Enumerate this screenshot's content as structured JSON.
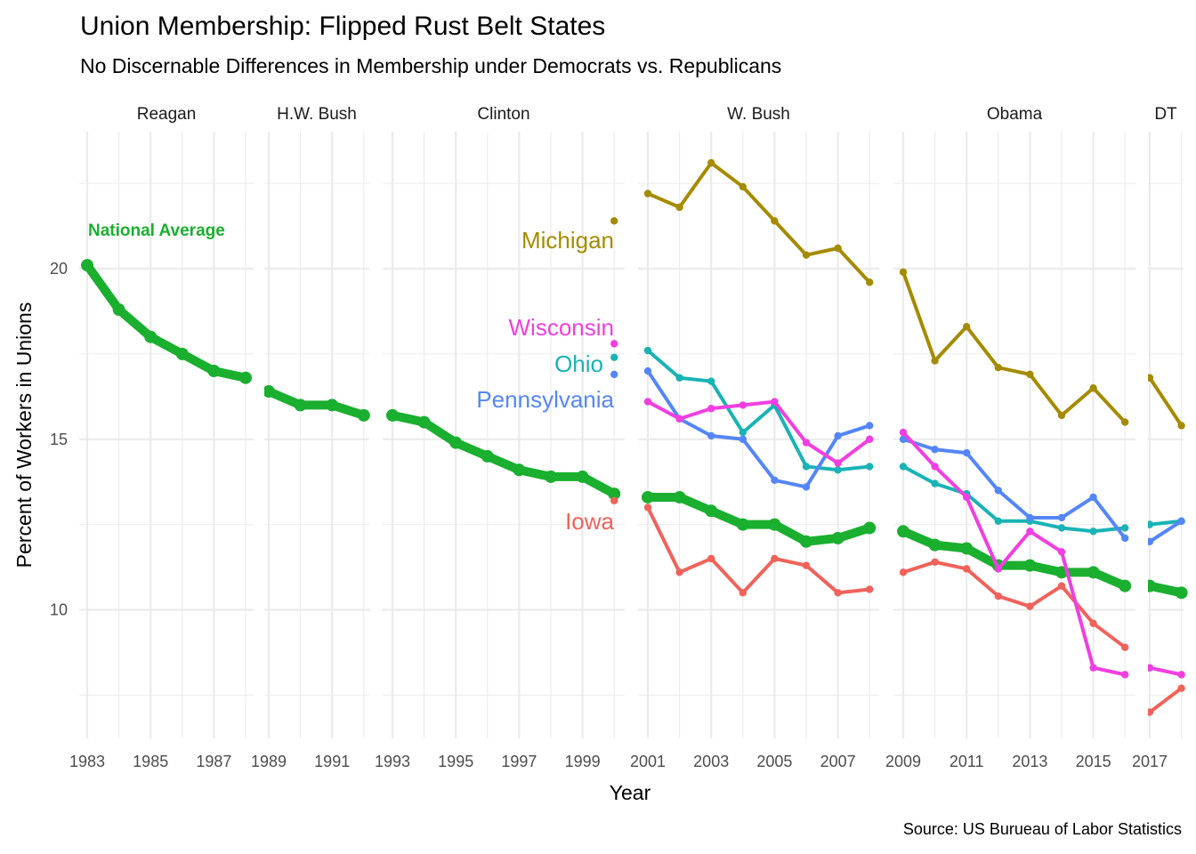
{
  "chart_data": {
    "type": "line",
    "title": "Union Membership: Flipped Rust Belt States",
    "subtitle": "No Discernable Differences in Membership under Democrats vs. Republicans",
    "xlabel": "Year",
    "ylabel": "Percent of Workers in Unions",
    "caption": "Source: US Burueau of Labor Statistics",
    "ylim": [
      6.2,
      24.0
    ],
    "y_ticks": [
      10,
      15,
      20
    ],
    "y_tick_labels": [
      "10",
      "15",
      "20"
    ],
    "y_minor_ticks": [
      7.5,
      12.5,
      17.5,
      22.5
    ],
    "grid": true,
    "legend": "none (direct labels)",
    "facets": [
      {
        "name": "Reagan",
        "years": [
          1983,
          1988
        ],
        "x_ticks": [
          1983,
          1985,
          1987
        ]
      },
      {
        "name": "H.W. Bush",
        "years": [
          1989,
          1992
        ],
        "x_ticks": [
          1989,
          1991
        ]
      },
      {
        "name": "Clinton",
        "years": [
          1993,
          2000
        ],
        "x_ticks": [
          1993,
          1995,
          1997,
          1999
        ]
      },
      {
        "name": "W. Bush",
        "years": [
          2001,
          2008
        ],
        "x_ticks": [
          2001,
          2003,
          2005,
          2007
        ]
      },
      {
        "name": "Obama",
        "years": [
          2009,
          2016
        ],
        "x_ticks": [
          2009,
          2011,
          2013,
          2015
        ]
      },
      {
        "name": "DT",
        "years": [
          2017,
          2018
        ],
        "x_ticks": [
          2017
        ]
      }
    ],
    "series": [
      {
        "name": "National Average",
        "color": "#1aaf2f",
        "label": "National Average",
        "x": [
          1983,
          1984,
          1985,
          1986,
          1987,
          1988,
          1989,
          1990,
          1991,
          1992,
          1993,
          1994,
          1995,
          1996,
          1997,
          1998,
          1999,
          2000,
          2001,
          2002,
          2003,
          2004,
          2005,
          2006,
          2007,
          2008,
          2009,
          2010,
          2011,
          2012,
          2013,
          2014,
          2015,
          2016,
          2017,
          2018
        ],
        "values": [
          20.1,
          18.8,
          18.0,
          17.5,
          17.0,
          16.8,
          16.4,
          16.0,
          16.0,
          15.7,
          15.7,
          15.5,
          14.9,
          14.5,
          14.1,
          13.9,
          13.9,
          13.4,
          13.3,
          13.3,
          12.9,
          12.5,
          12.5,
          12.0,
          12.1,
          12.4,
          12.3,
          11.9,
          11.8,
          11.3,
          11.3,
          11.1,
          11.1,
          10.7,
          10.7,
          10.5
        ]
      },
      {
        "name": "Michigan",
        "color": "#a58b00",
        "label": "Michigan",
        "x": [
          2000,
          2001,
          2002,
          2003,
          2004,
          2005,
          2006,
          2007,
          2008,
          2009,
          2010,
          2011,
          2012,
          2013,
          2014,
          2015,
          2016,
          2017,
          2018
        ],
        "values": [
          21.4,
          22.2,
          21.8,
          23.1,
          22.4,
          21.4,
          20.4,
          20.6,
          19.6,
          19.9,
          17.3,
          18.3,
          17.1,
          16.9,
          15.7,
          16.5,
          15.5,
          16.8,
          15.4
        ]
      },
      {
        "name": "Wisconsin",
        "color": "#f03fe0",
        "label": "Wisconsin",
        "x": [
          2000,
          2001,
          2002,
          2003,
          2004,
          2005,
          2006,
          2007,
          2008,
          2009,
          2010,
          2011,
          2012,
          2013,
          2014,
          2015,
          2016,
          2017,
          2018
        ],
        "values": [
          17.8,
          16.1,
          15.6,
          15.9,
          16.0,
          16.1,
          14.9,
          14.3,
          15.0,
          15.2,
          14.2,
          13.3,
          11.2,
          12.3,
          11.7,
          8.3,
          8.1,
          8.3,
          8.1
        ]
      },
      {
        "name": "Ohio",
        "color": "#19b3b5",
        "label": "Ohio",
        "x": [
          2000,
          2001,
          2002,
          2003,
          2004,
          2005,
          2006,
          2007,
          2008,
          2009,
          2010,
          2011,
          2012,
          2013,
          2014,
          2015,
          2016,
          2017,
          2018
        ],
        "values": [
          17.4,
          17.6,
          16.8,
          16.7,
          15.2,
          16.0,
          14.2,
          14.1,
          14.2,
          14.2,
          13.7,
          13.4,
          12.6,
          12.6,
          12.4,
          12.3,
          12.4,
          12.5,
          12.6
        ]
      },
      {
        "name": "Pennsylvania",
        "color": "#5486f8",
        "label": "Pennsylvania",
        "x": [
          2000,
          2001,
          2002,
          2003,
          2004,
          2005,
          2006,
          2007,
          2008,
          2009,
          2010,
          2011,
          2012,
          2013,
          2014,
          2015,
          2016,
          2017,
          2018
        ],
        "values": [
          16.9,
          17.0,
          15.6,
          15.1,
          15.0,
          13.8,
          13.6,
          15.1,
          15.4,
          15.0,
          14.7,
          14.6,
          13.5,
          12.7,
          12.7,
          13.3,
          12.1,
          12.0,
          12.6
        ]
      },
      {
        "name": "Iowa",
        "color": "#f0625a",
        "label": "Iowa",
        "x": [
          2000,
          2001,
          2002,
          2003,
          2004,
          2005,
          2006,
          2007,
          2008,
          2009,
          2010,
          2011,
          2012,
          2013,
          2014,
          2015,
          2016,
          2017,
          2018
        ],
        "values": [
          13.2,
          13.0,
          11.1,
          11.5,
          10.5,
          11.5,
          11.3,
          10.5,
          10.6,
          11.1,
          11.4,
          11.2,
          10.4,
          10.1,
          10.7,
          9.6,
          8.9,
          7.0,
          7.7
        ]
      }
    ]
  }
}
